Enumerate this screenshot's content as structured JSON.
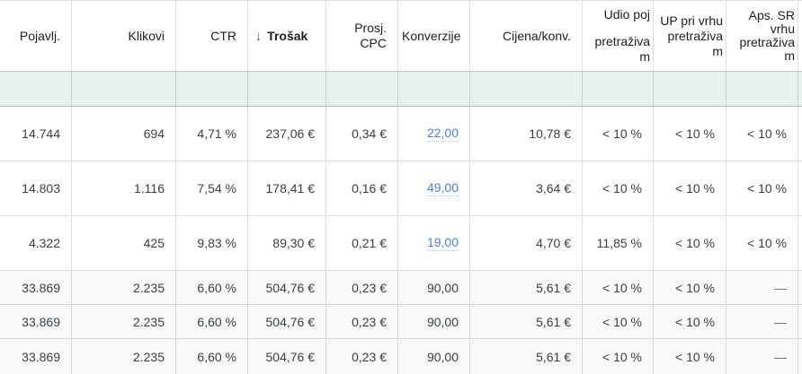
{
  "theme": {
    "accent_link": "#4a7de2",
    "link_underline": "#a9c3f2",
    "row_green": "#e7f0ea",
    "row_grey": "#f8f9fa",
    "text": "#3c4043",
    "header_text": "#202124",
    "line": "rgba(0,0,0,0.13)",
    "line_strong": "rgba(0,0,0,0.22)"
  },
  "table": {
    "sort_icon": "↓",
    "columns": [
      {
        "name": "impressions",
        "label": "Pojavlj."
      },
      {
        "name": "clicks",
        "label": "Klikovi"
      },
      {
        "name": "ctr",
        "label": "CTR"
      },
      {
        "name": "cost",
        "label": "Trošak",
        "sorted": "descending"
      },
      {
        "name": "avg_cpc",
        "lines": [
          "Prosj.",
          "CPC"
        ]
      },
      {
        "name": "conversions",
        "label": "Konverzije"
      },
      {
        "name": "cost_per_conversion",
        "label": "Cijena/konv."
      },
      {
        "name": "search_impression_share",
        "lines": [
          "Udio poj",
          "pretraživa",
          "m"
        ]
      },
      {
        "name": "search_top_impression_share",
        "lines": [
          "UP pri vrhu",
          "pretraživa",
          "m"
        ]
      },
      {
        "name": "search_abs_top_impression_share",
        "lines": [
          "Aps. SR",
          "vrhu",
          "pretraživa",
          "m"
        ]
      }
    ],
    "rows": [
      {
        "cells": [
          "14.744",
          "694",
          "4,71 %",
          "237,06 €",
          "0,34 €",
          "22,00",
          "10,78 €",
          "< 10 %",
          "< 10 %",
          "< 10 %"
        ]
      },
      {
        "cells": [
          "14.803",
          "1.116",
          "7,54 %",
          "178,41 €",
          "0,16 €",
          "49,00",
          "3,64 €",
          "< 10 %",
          "< 10 %",
          "< 10 %"
        ]
      },
      {
        "cells": [
          "4.322",
          "425",
          "9,83 %",
          "89,30 €",
          "0,21 €",
          "19,00",
          "4,70 €",
          "11,85 %",
          "< 10 %",
          "< 10 %"
        ]
      }
    ],
    "summary_rows": [
      {
        "cells": [
          "33.869",
          "2.235",
          "6,60 %",
          "504,76 €",
          "0,23 €",
          "90,00",
          "5,61 €",
          "< 10 %",
          "< 10 %",
          "—"
        ]
      },
      {
        "cells": [
          "33.869",
          "2.235",
          "6,60 %",
          "504,76 €",
          "0,23 €",
          "90,00",
          "5,61 €",
          "< 10 %",
          "< 10 %",
          "—"
        ]
      },
      {
        "cells": [
          "33.869",
          "2.235",
          "6,60 %",
          "504,76 €",
          "0,23 €",
          "90,00",
          "5,61 €",
          "< 10 %",
          "< 10 %",
          "—"
        ]
      }
    ]
  }
}
